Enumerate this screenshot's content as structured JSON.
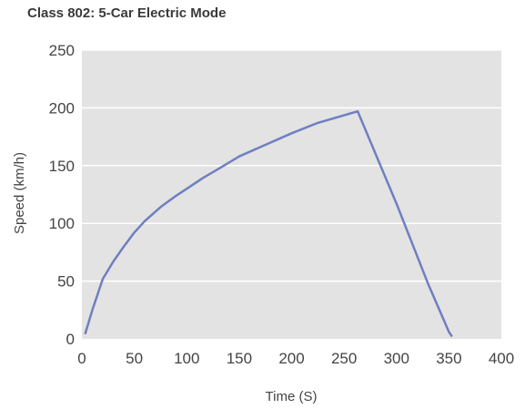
{
  "chart_data": {
    "type": "line",
    "title": "Class 802: 5-Car Electric Mode",
    "xlabel": "Time (S)",
    "ylabel": "Speed (km/h)",
    "xlim": [
      0,
      400
    ],
    "ylim": [
      0,
      250
    ],
    "xticks": [
      0,
      50,
      100,
      150,
      200,
      250,
      300,
      350,
      400
    ],
    "yticks": [
      0,
      50,
      100,
      150,
      200,
      250
    ],
    "grid": "horizontal",
    "legend": "none",
    "colors": {
      "plot_bg": "#e3e3e3",
      "grid": "#ffffff",
      "line": "#6f7fc0"
    },
    "series": [
      {
        "x": [
          3,
          10,
          20,
          30,
          40,
          50,
          60,
          75,
          90,
          100,
          115,
          130,
          150,
          175,
          200,
          225,
          263,
          300,
          330,
          350,
          353
        ],
        "y": [
          4,
          25,
          52,
          67,
          80,
          92,
          102,
          114,
          124,
          130,
          139,
          147,
          158,
          168,
          178,
          187,
          197,
          117,
          48,
          6,
          2
        ]
      }
    ]
  }
}
